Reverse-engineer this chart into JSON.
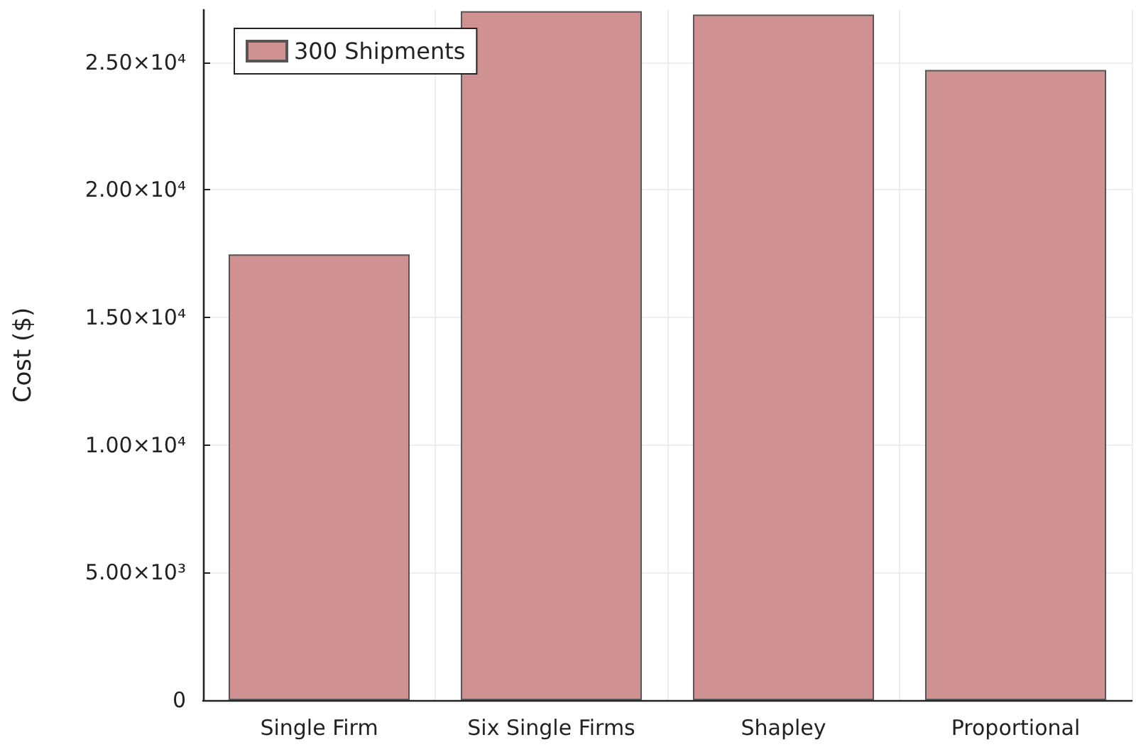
{
  "chart_data": {
    "type": "bar",
    "ylabel": "Cost ($)",
    "categories": [
      "Single Firm",
      "Six Single Firms",
      "Shapley",
      "Proportional"
    ],
    "series": [
      {
        "name": "300 Shipments",
        "color": "#cf9191",
        "values": [
          17470,
          27000,
          26870,
          24700
        ]
      }
    ],
    "ylim": [
      0,
      27050
    ],
    "yticks": [
      {
        "value": 0,
        "label": "0"
      },
      {
        "value": 5000,
        "label": "5.00×10³"
      },
      {
        "value": 10000,
        "label": "1.00×10⁴"
      },
      {
        "value": 15000,
        "label": "1.50×10⁴"
      },
      {
        "value": 20000,
        "label": "2.00×10⁴"
      },
      {
        "value": 25000,
        "label": "2.50×10⁴"
      }
    ],
    "grid": true,
    "legend": "top left"
  }
}
